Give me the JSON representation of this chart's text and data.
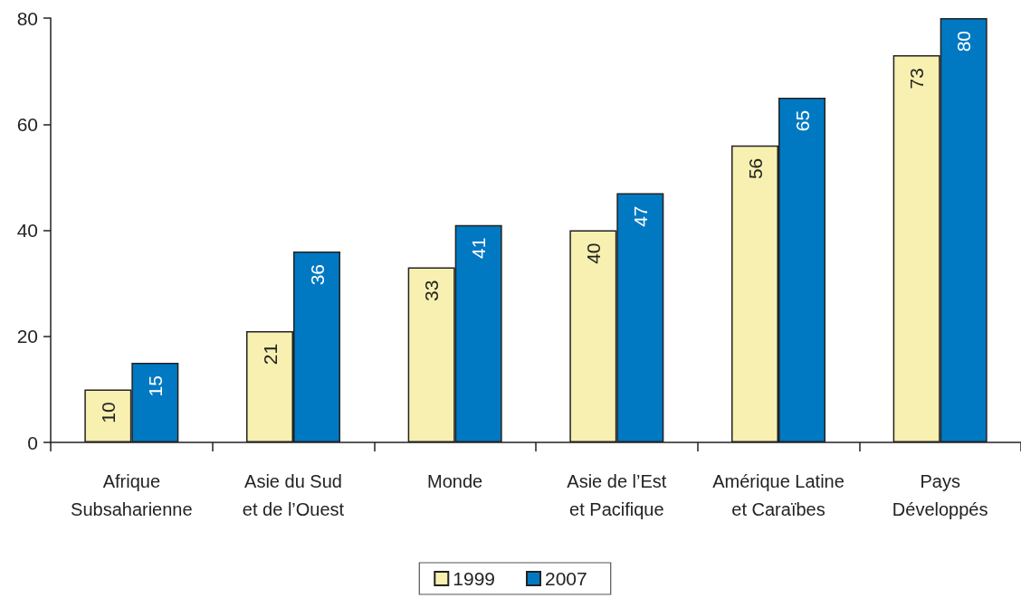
{
  "chart_data": {
    "type": "bar",
    "categories": [
      "Afrique\nSubsaharienne",
      "Asie du Sud\net de l’Ouest",
      "Monde",
      "Asie de l’Est\net Pacifique",
      "Amérique Latine\net Caraïbes",
      "Pays\nDéveloppés"
    ],
    "series": [
      {
        "name": "1999",
        "color": "#f8f0b0",
        "values": [
          10,
          21,
          33,
          40,
          56,
          73
        ]
      },
      {
        "name": "2007",
        "color": "#0079c2",
        "values": [
          15,
          36,
          41,
          47,
          65,
          80
        ]
      }
    ],
    "ylim": [
      0,
      80
    ],
    "yticks": [
      0,
      20,
      40,
      60,
      80
    ],
    "grid": false,
    "legend": "bottom",
    "data_labels": true
  }
}
